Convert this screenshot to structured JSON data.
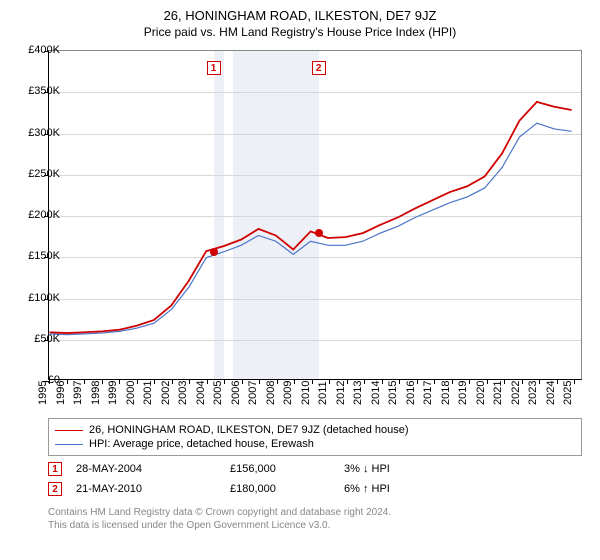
{
  "title_line1": "26, HONINGHAM ROAD, ILKESTON, DE7 9JZ",
  "title_line2": "Price paid vs. HM Land Registry's House Price Index (HPI)",
  "chart": {
    "type": "line",
    "x_years": [
      1995,
      1996,
      1997,
      1998,
      1999,
      2000,
      2001,
      2002,
      2003,
      2004,
      2005,
      2006,
      2007,
      2008,
      2009,
      2010,
      2011,
      2012,
      2013,
      2014,
      2015,
      2016,
      2017,
      2018,
      2019,
      2020,
      2021,
      2022,
      2023,
      2024,
      2025
    ],
    "xlim": [
      1995,
      2025.5
    ],
    "ylim": [
      0,
      400000
    ],
    "ytick_step": 50000,
    "yticklabels": [
      "£0",
      "£50K",
      "£100K",
      "£150K",
      "£200K",
      "£250K",
      "£300K",
      "£350K",
      "£400K"
    ],
    "grid_color": "#d8d8d8",
    "band_color": "#edf0f7",
    "bands": [
      [
        2004.4,
        2005.0
      ],
      [
        2005.5,
        2010.4
      ]
    ],
    "background_color": "#ffffff",
    "series": [
      {
        "name": "property",
        "label": "26, HONINGHAM ROAD, ILKESTON, DE7 9JZ (detached house)",
        "color": "#d00000",
        "width": 1.8,
        "data": [
          [
            1995,
            57000
          ],
          [
            1996,
            56000
          ],
          [
            1997,
            57000
          ],
          [
            1998,
            58000
          ],
          [
            1999,
            60000
          ],
          [
            2000,
            65000
          ],
          [
            2001,
            72000
          ],
          [
            2002,
            90000
          ],
          [
            2003,
            120000
          ],
          [
            2004,
            156000
          ],
          [
            2005,
            162000
          ],
          [
            2006,
            170000
          ],
          [
            2007,
            183000
          ],
          [
            2008,
            175000
          ],
          [
            2009,
            158000
          ],
          [
            2010,
            180000
          ],
          [
            2011,
            172000
          ],
          [
            2012,
            173000
          ],
          [
            2013,
            178000
          ],
          [
            2014,
            188000
          ],
          [
            2015,
            197000
          ],
          [
            2016,
            208000
          ],
          [
            2017,
            218000
          ],
          [
            2018,
            228000
          ],
          [
            2019,
            235000
          ],
          [
            2020,
            247000
          ],
          [
            2021,
            275000
          ],
          [
            2022,
            315000
          ],
          [
            2023,
            338000
          ],
          [
            2024,
            332000
          ],
          [
            2025,
            328000
          ]
        ]
      },
      {
        "name": "hpi",
        "label": "HPI: Average price, detached house, Erewash",
        "color": "#4a74c8",
        "width": 1.2,
        "data": [
          [
            1995,
            55000
          ],
          [
            1996,
            54000
          ],
          [
            1997,
            55000
          ],
          [
            1998,
            56000
          ],
          [
            1999,
            58000
          ],
          [
            2000,
            62000
          ],
          [
            2001,
            68000
          ],
          [
            2002,
            85000
          ],
          [
            2003,
            112000
          ],
          [
            2004,
            148000
          ],
          [
            2005,
            155000
          ],
          [
            2006,
            163000
          ],
          [
            2007,
            175000
          ],
          [
            2008,
            168000
          ],
          [
            2009,
            152000
          ],
          [
            2010,
            168000
          ],
          [
            2011,
            163000
          ],
          [
            2012,
            163000
          ],
          [
            2013,
            168000
          ],
          [
            2014,
            178000
          ],
          [
            2015,
            186000
          ],
          [
            2016,
            197000
          ],
          [
            2017,
            206000
          ],
          [
            2018,
            215000
          ],
          [
            2019,
            222000
          ],
          [
            2020,
            233000
          ],
          [
            2021,
            258000
          ],
          [
            2022,
            295000
          ],
          [
            2023,
            312000
          ],
          [
            2024,
            305000
          ],
          [
            2025,
            302000
          ]
        ]
      }
    ],
    "sale_points": [
      {
        "n": 1,
        "x": 2004.4,
        "y": 156000
      },
      {
        "n": 2,
        "x": 2010.4,
        "y": 180000
      }
    ],
    "sale_marker_color": "#d00000"
  },
  "legend": {
    "series1": "26, HONINGHAM ROAD, ILKESTON, DE7 9JZ (detached house)",
    "series2": "HPI: Average price, detached house, Erewash"
  },
  "sales": [
    {
      "n": "1",
      "date": "28-MAY-2004",
      "price": "£156,000",
      "delta": "3% ↓ HPI"
    },
    {
      "n": "2",
      "date": "21-MAY-2010",
      "price": "£180,000",
      "delta": "6% ↑ HPI"
    }
  ],
  "footer": {
    "line1": "Contains HM Land Registry data © Crown copyright and database right 2024.",
    "line2": "This data is licensed under the Open Government Licence v3.0."
  }
}
